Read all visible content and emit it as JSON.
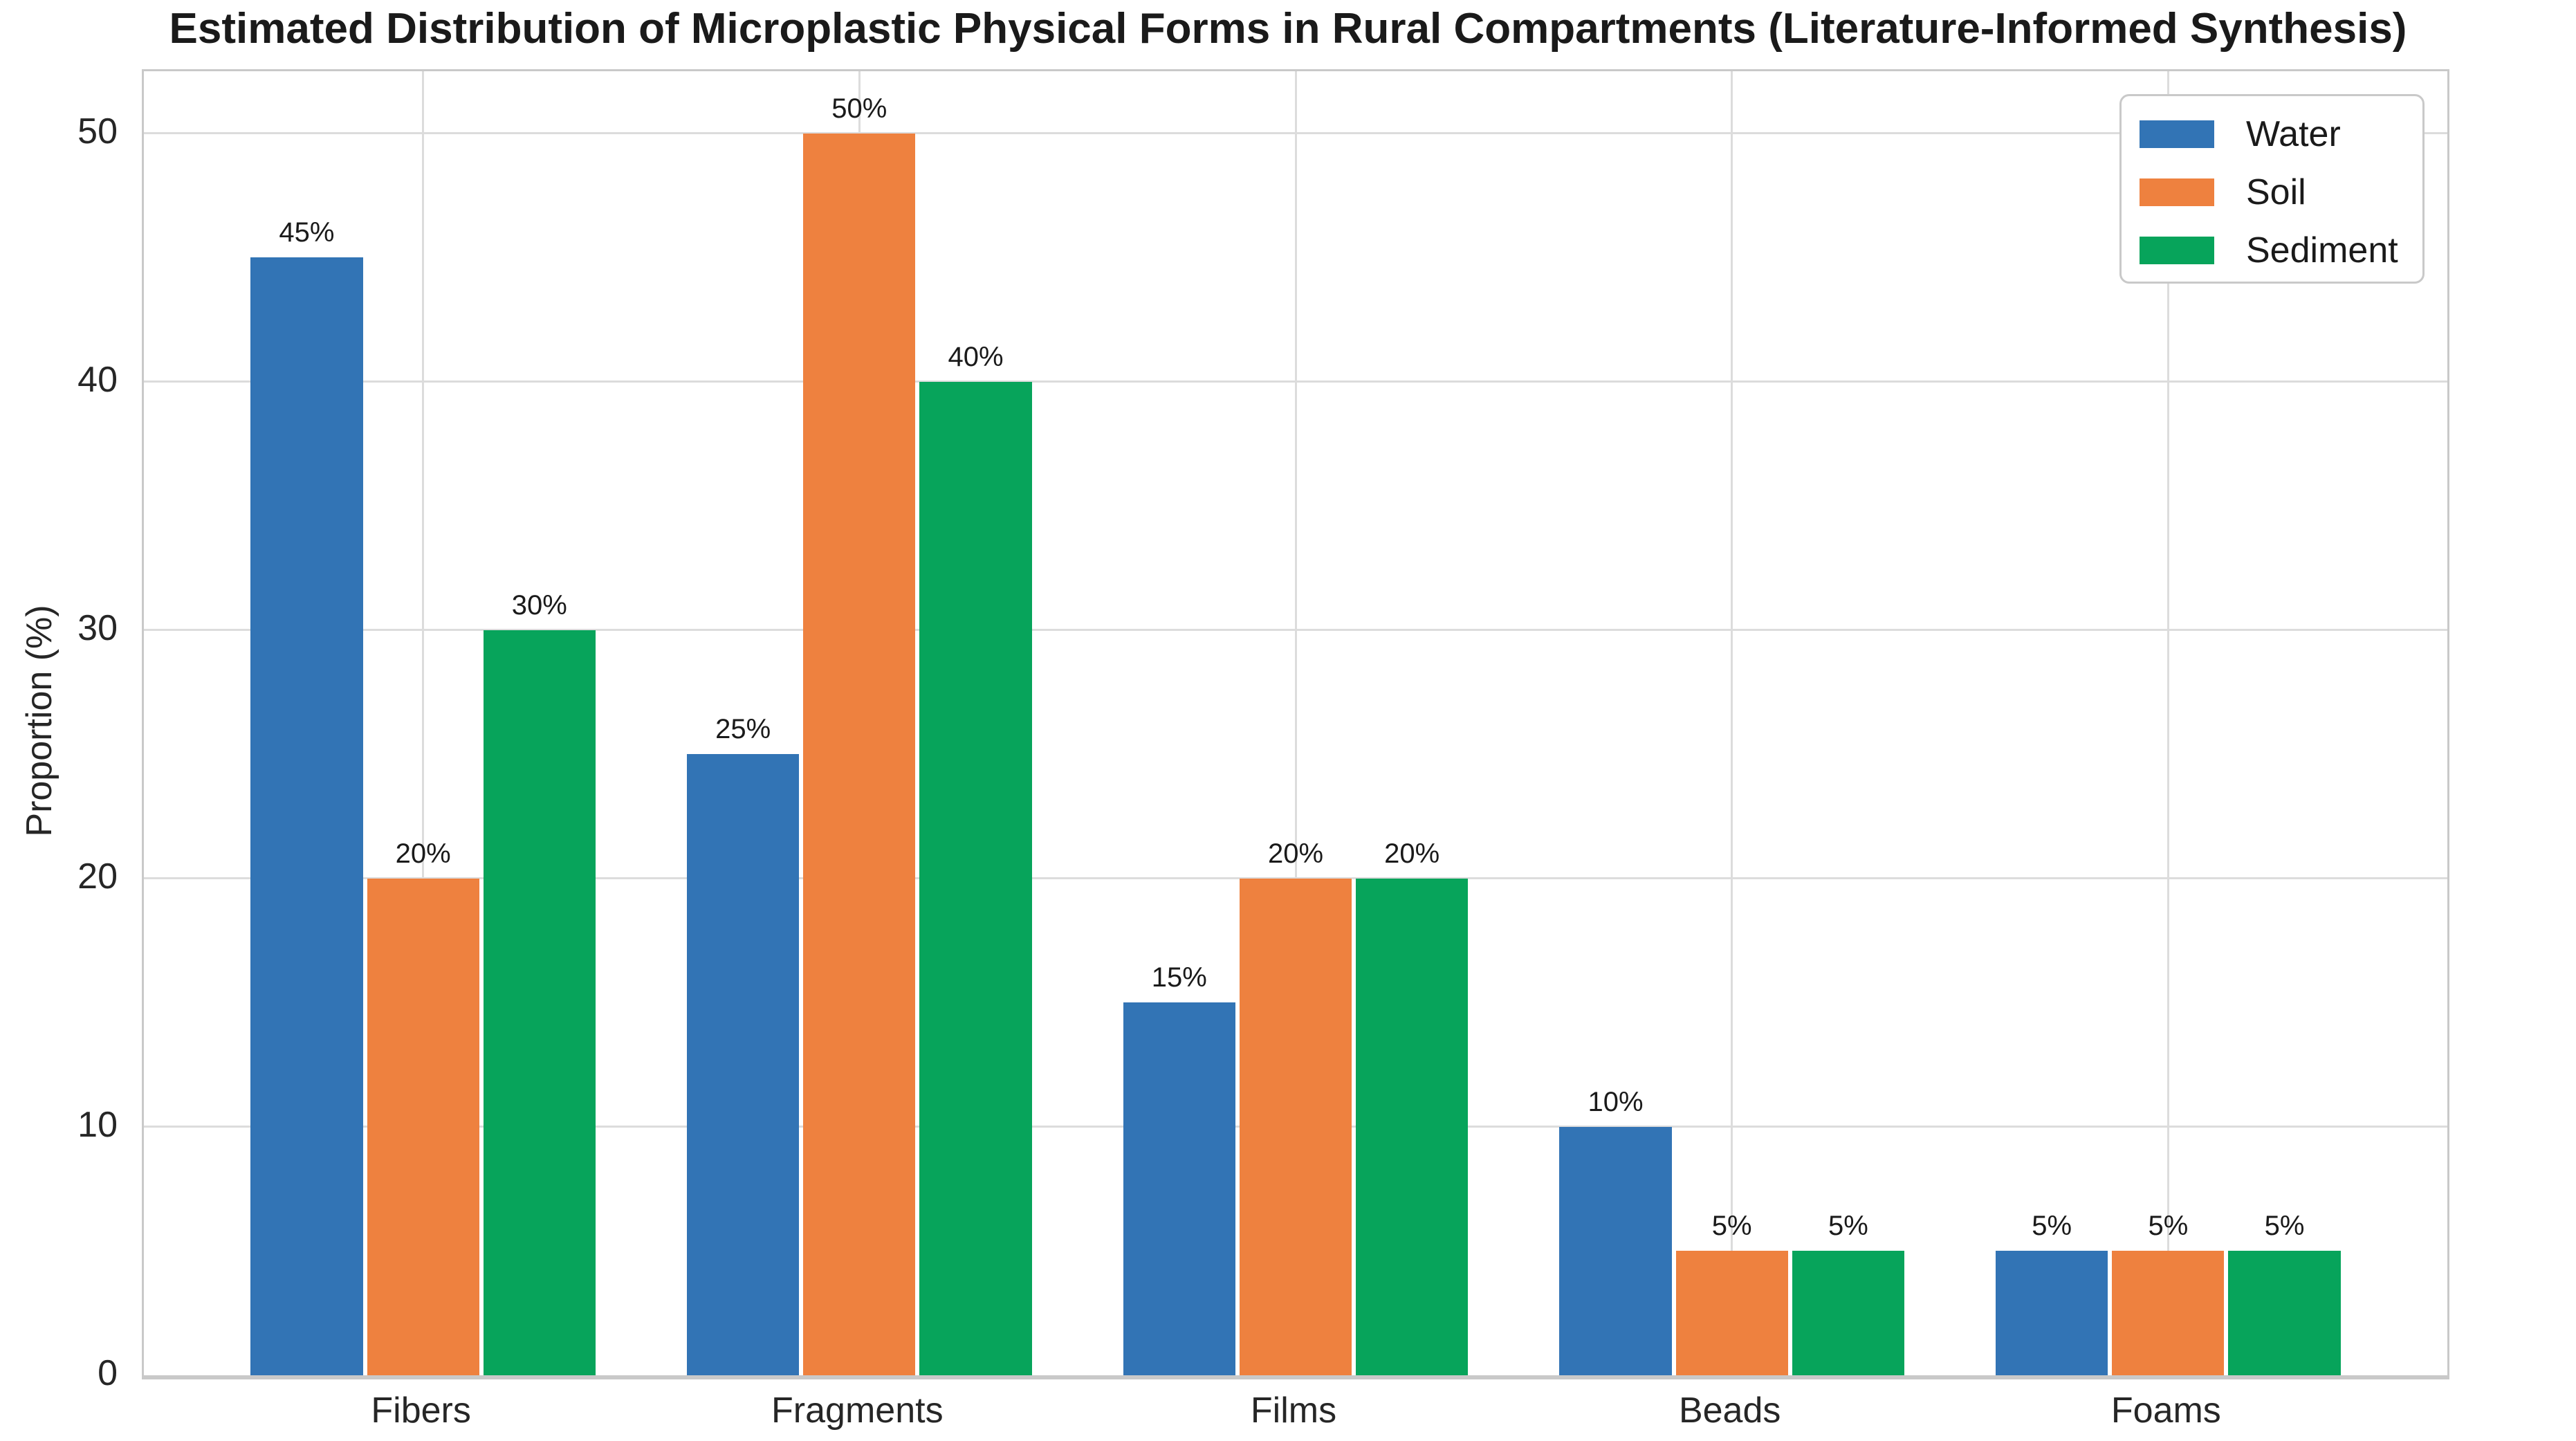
{
  "chart_data": {
    "type": "bar",
    "title": "Estimated Distribution of Microplastic Physical Forms in Rural Compartments (Literature-Informed Synthesis)",
    "categories": [
      "Fibers",
      "Fragments",
      "Films",
      "Beads",
      "Foams"
    ],
    "series": [
      {
        "name": "Water",
        "color": "#3274B5",
        "values": [
          45,
          25,
          15,
          10,
          5
        ]
      },
      {
        "name": "Soil",
        "color": "#EE813F",
        "values": [
          20,
          50,
          20,
          5,
          5
        ]
      },
      {
        "name": "Sediment",
        "color": "#07A45B",
        "values": [
          30,
          40,
          20,
          5,
          5
        ]
      }
    ],
    "value_label_suffix": "%",
    "bar_value_labels": {
      "Water": [
        "45%",
        "25%",
        "15%",
        "10%",
        "5%"
      ],
      "Soil": [
        "20%",
        "50%",
        "20%",
        "5%",
        "5%"
      ],
      "Sediment": [
        "30%",
        "40%",
        "20%",
        "5%",
        "5%"
      ]
    },
    "xlabel": "",
    "ylabel": "Proportion (%)",
    "yticks": [
      "0",
      "10",
      "20",
      "30",
      "40",
      "50"
    ],
    "ytick_values": [
      0,
      10,
      20,
      30,
      40,
      50
    ],
    "ylim": [
      0,
      52.5
    ],
    "grid": "both",
    "legend_position": "upper-right",
    "colors": {
      "grid": "#DCDCDC",
      "frame": "#C9C9C9",
      "text": "#1A1A1A",
      "background": "#FFFFFF"
    }
  }
}
